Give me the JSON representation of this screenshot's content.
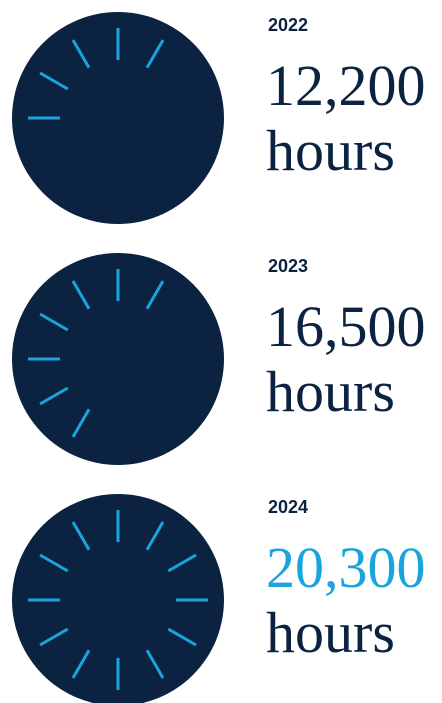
{
  "items": [
    {
      "year": "2022",
      "amount": "12,200",
      "unit": "hours",
      "color": "#0b2341"
    },
    {
      "year": "2023",
      "amount": "16,500",
      "unit": "hours",
      "color": "#0b2341"
    },
    {
      "year": "2024",
      "amount": "20,300",
      "unit": "hours",
      "color": "#1aa3de"
    }
  ]
}
